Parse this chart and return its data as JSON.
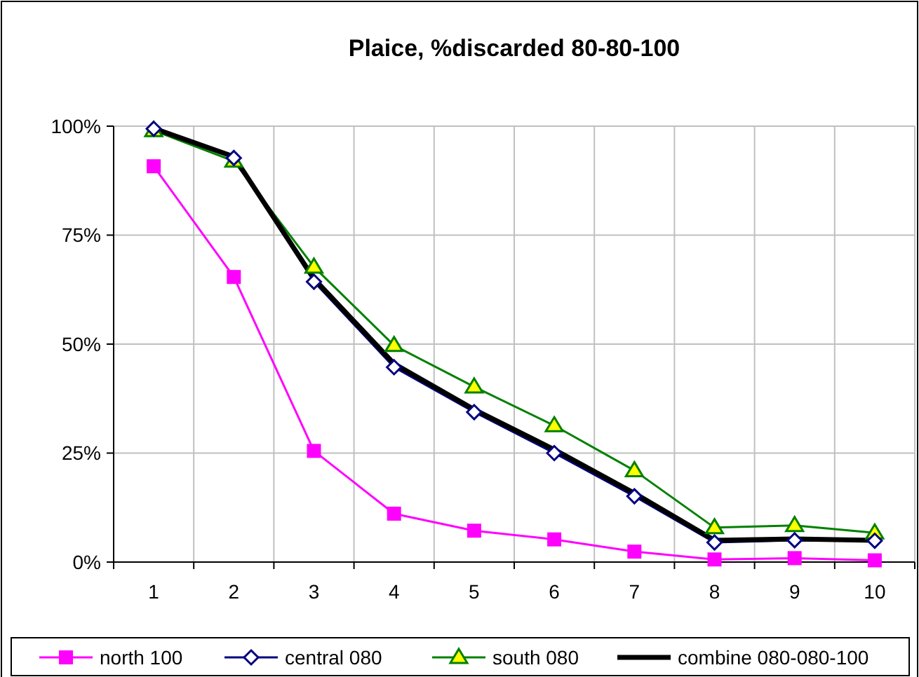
{
  "chart_data": {
    "type": "line",
    "title": "Plaice, %discarded 80-80-100",
    "categories": [
      "1",
      "2",
      "3",
      "4",
      "5",
      "6",
      "7",
      "8",
      "9",
      "10"
    ],
    "ylim": [
      0,
      100
    ],
    "yticks": [
      {
        "value": 0,
        "label": "0%"
      },
      {
        "value": 25,
        "label": "25%"
      },
      {
        "value": 50,
        "label": "50%"
      },
      {
        "value": 75,
        "label": "75%"
      },
      {
        "value": 100,
        "label": "100%"
      }
    ],
    "grid": true,
    "legend": "bottom",
    "series": [
      {
        "name": "north 100",
        "color": "#ff00ff",
        "marker": "square",
        "values": [
          90.8,
          65.4,
          25.5,
          11.1,
          7.2,
          5.2,
          2.4,
          0.6,
          0.9,
          0.4
        ]
      },
      {
        "name": "central 080",
        "color": "#000080",
        "marker": "diamond",
        "values": [
          99.4,
          92.7,
          64.3,
          44.7,
          34.4,
          25.0,
          15.1,
          4.5,
          5.0,
          4.9
        ]
      },
      {
        "name": "south 080",
        "color": "#008000",
        "marker": "triangle",
        "values": [
          99.0,
          92.0,
          67.7,
          49.7,
          40.2,
          31.3,
          21.0,
          7.9,
          8.4,
          6.7
        ]
      },
      {
        "name": "combine 080-080-100",
        "color": "#000000",
        "marker": "none",
        "values": [
          99.5,
          93.0,
          65.0,
          45.5,
          35.0,
          25.8,
          15.8,
          5.0,
          5.3,
          5.0
        ]
      }
    ]
  }
}
